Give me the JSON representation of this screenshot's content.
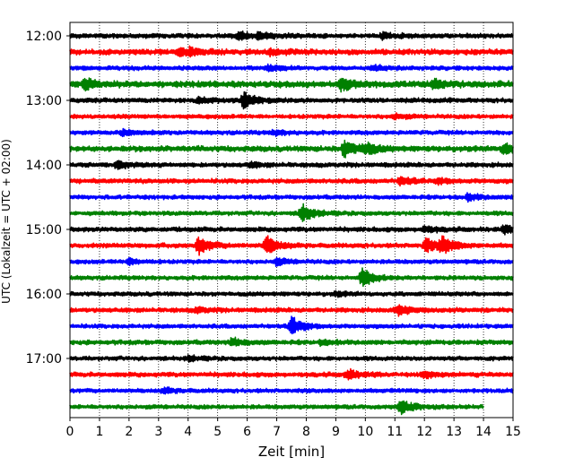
{
  "chart_data": {
    "type": "line",
    "chart_kind": "helicorder",
    "title": "",
    "xlabel": "Zeit  [min]",
    "ylabel": "UTC (Lokalzeit = UTC + 02:00)",
    "xlim": [
      0,
      15
    ],
    "x_ticks": [
      0,
      1,
      2,
      3,
      4,
      5,
      6,
      7,
      8,
      9,
      10,
      11,
      12,
      13,
      14,
      15
    ],
    "x_grid": "dotted vertical at each minute",
    "y_grid": false,
    "legend": "none",
    "row_minutes": 15,
    "y_tick_labels": [
      "12:00",
      "13:00",
      "14:00",
      "15:00",
      "16:00",
      "17:00"
    ],
    "trace_color_cycle": [
      "#000000",
      "#ff0000",
      "#0000ff",
      "#008000"
    ],
    "series": [
      {
        "start": "12:00",
        "end_min": 15,
        "noise": 0.22,
        "events": [
          {
            "t": 5.7,
            "a": 0.45
          },
          {
            "t": 6.4,
            "a": 0.3
          },
          {
            "t": 10.6,
            "a": 0.3
          }
        ]
      },
      {
        "start": "12:15",
        "end_min": 15,
        "noise": 0.26,
        "events": [
          {
            "t": 3.7,
            "a": 0.45
          },
          {
            "t": 4.1,
            "a": 0.3
          },
          {
            "t": 6.8,
            "a": 0.3
          }
        ]
      },
      {
        "start": "12:30",
        "end_min": 15,
        "noise": 0.2,
        "events": [
          {
            "t": 6.7,
            "a": 0.35
          },
          {
            "t": 10.3,
            "a": 0.25
          }
        ]
      },
      {
        "start": "12:45",
        "end_min": 15,
        "noise": 0.3,
        "events": [
          {
            "t": 0.5,
            "a": 0.5
          },
          {
            "t": 9.2,
            "a": 0.7
          },
          {
            "t": 12.3,
            "a": 0.45
          }
        ]
      },
      {
        "start": "13:00",
        "end_min": 15,
        "noise": 0.22,
        "events": [
          {
            "t": 5.9,
            "a": 0.9
          },
          {
            "t": 4.4,
            "a": 0.3
          }
        ]
      },
      {
        "start": "13:15",
        "end_min": 15,
        "noise": 0.2,
        "events": [
          {
            "t": 11.0,
            "a": 0.25
          }
        ]
      },
      {
        "start": "13:30",
        "end_min": 15,
        "noise": 0.2,
        "events": [
          {
            "t": 1.8,
            "a": 0.3
          },
          {
            "t": 6.9,
            "a": 0.25
          }
        ]
      },
      {
        "start": "13:45",
        "end_min": 15,
        "noise": 0.26,
        "events": [
          {
            "t": 9.3,
            "a": 0.9
          },
          {
            "t": 10.0,
            "a": 0.55
          },
          {
            "t": 14.7,
            "a": 0.6
          }
        ]
      },
      {
        "start": "14:00",
        "end_min": 15,
        "noise": 0.22,
        "events": [
          {
            "t": 1.6,
            "a": 0.35
          },
          {
            "t": 6.1,
            "a": 0.25
          }
        ]
      },
      {
        "start": "14:15",
        "end_min": 15,
        "noise": 0.22,
        "events": [
          {
            "t": 11.2,
            "a": 0.4
          },
          {
            "t": 12.5,
            "a": 0.25
          }
        ]
      },
      {
        "start": "14:30",
        "end_min": 15,
        "noise": 0.2,
        "events": [
          {
            "t": 13.5,
            "a": 0.35
          }
        ]
      },
      {
        "start": "14:45",
        "end_min": 15,
        "noise": 0.2,
        "events": [
          {
            "t": 7.85,
            "a": 0.95
          }
        ]
      },
      {
        "start": "15:00",
        "end_min": 15,
        "noise": 0.22,
        "events": [
          {
            "t": 12.0,
            "a": 0.3
          },
          {
            "t": 14.7,
            "a": 0.35
          }
        ]
      },
      {
        "start": "15:15",
        "end_min": 15,
        "noise": 0.22,
        "events": [
          {
            "t": 4.35,
            "a": 0.95
          },
          {
            "t": 6.65,
            "a": 0.95
          },
          {
            "t": 12.05,
            "a": 0.7
          },
          {
            "t": 12.6,
            "a": 0.85
          }
        ]
      },
      {
        "start": "15:30",
        "end_min": 15,
        "noise": 0.2,
        "events": [
          {
            "t": 2.0,
            "a": 0.3
          },
          {
            "t": 7.0,
            "a": 0.35
          }
        ]
      },
      {
        "start": "15:45",
        "end_min": 15,
        "noise": 0.2,
        "events": [
          {
            "t": 9.9,
            "a": 1.0
          }
        ]
      },
      {
        "start": "16:00",
        "end_min": 15,
        "noise": 0.2,
        "events": [
          {
            "t": 9.0,
            "a": 0.2
          }
        ]
      },
      {
        "start": "16:15",
        "end_min": 15,
        "noise": 0.22,
        "events": [
          {
            "t": 11.1,
            "a": 0.55
          },
          {
            "t": 4.3,
            "a": 0.25
          }
        ]
      },
      {
        "start": "16:30",
        "end_min": 15,
        "noise": 0.2,
        "events": [
          {
            "t": 7.5,
            "a": 0.95
          }
        ]
      },
      {
        "start": "16:45",
        "end_min": 15,
        "noise": 0.22,
        "events": [
          {
            "t": 5.5,
            "a": 0.4
          },
          {
            "t": 8.5,
            "a": 0.2
          }
        ]
      },
      {
        "start": "17:00",
        "end_min": 15,
        "noise": 0.2,
        "events": [
          {
            "t": 4.0,
            "a": 0.25
          }
        ]
      },
      {
        "start": "17:15",
        "end_min": 15,
        "noise": 0.22,
        "events": [
          {
            "t": 9.4,
            "a": 0.5
          },
          {
            "t": 12.0,
            "a": 0.35
          }
        ]
      },
      {
        "start": "17:30",
        "end_min": 15,
        "noise": 0.2,
        "events": [
          {
            "t": 3.2,
            "a": 0.3
          }
        ]
      },
      {
        "start": "17:45",
        "end_min": 14,
        "noise": 0.2,
        "events": [
          {
            "t": 11.2,
            "a": 0.75
          }
        ]
      }
    ]
  }
}
